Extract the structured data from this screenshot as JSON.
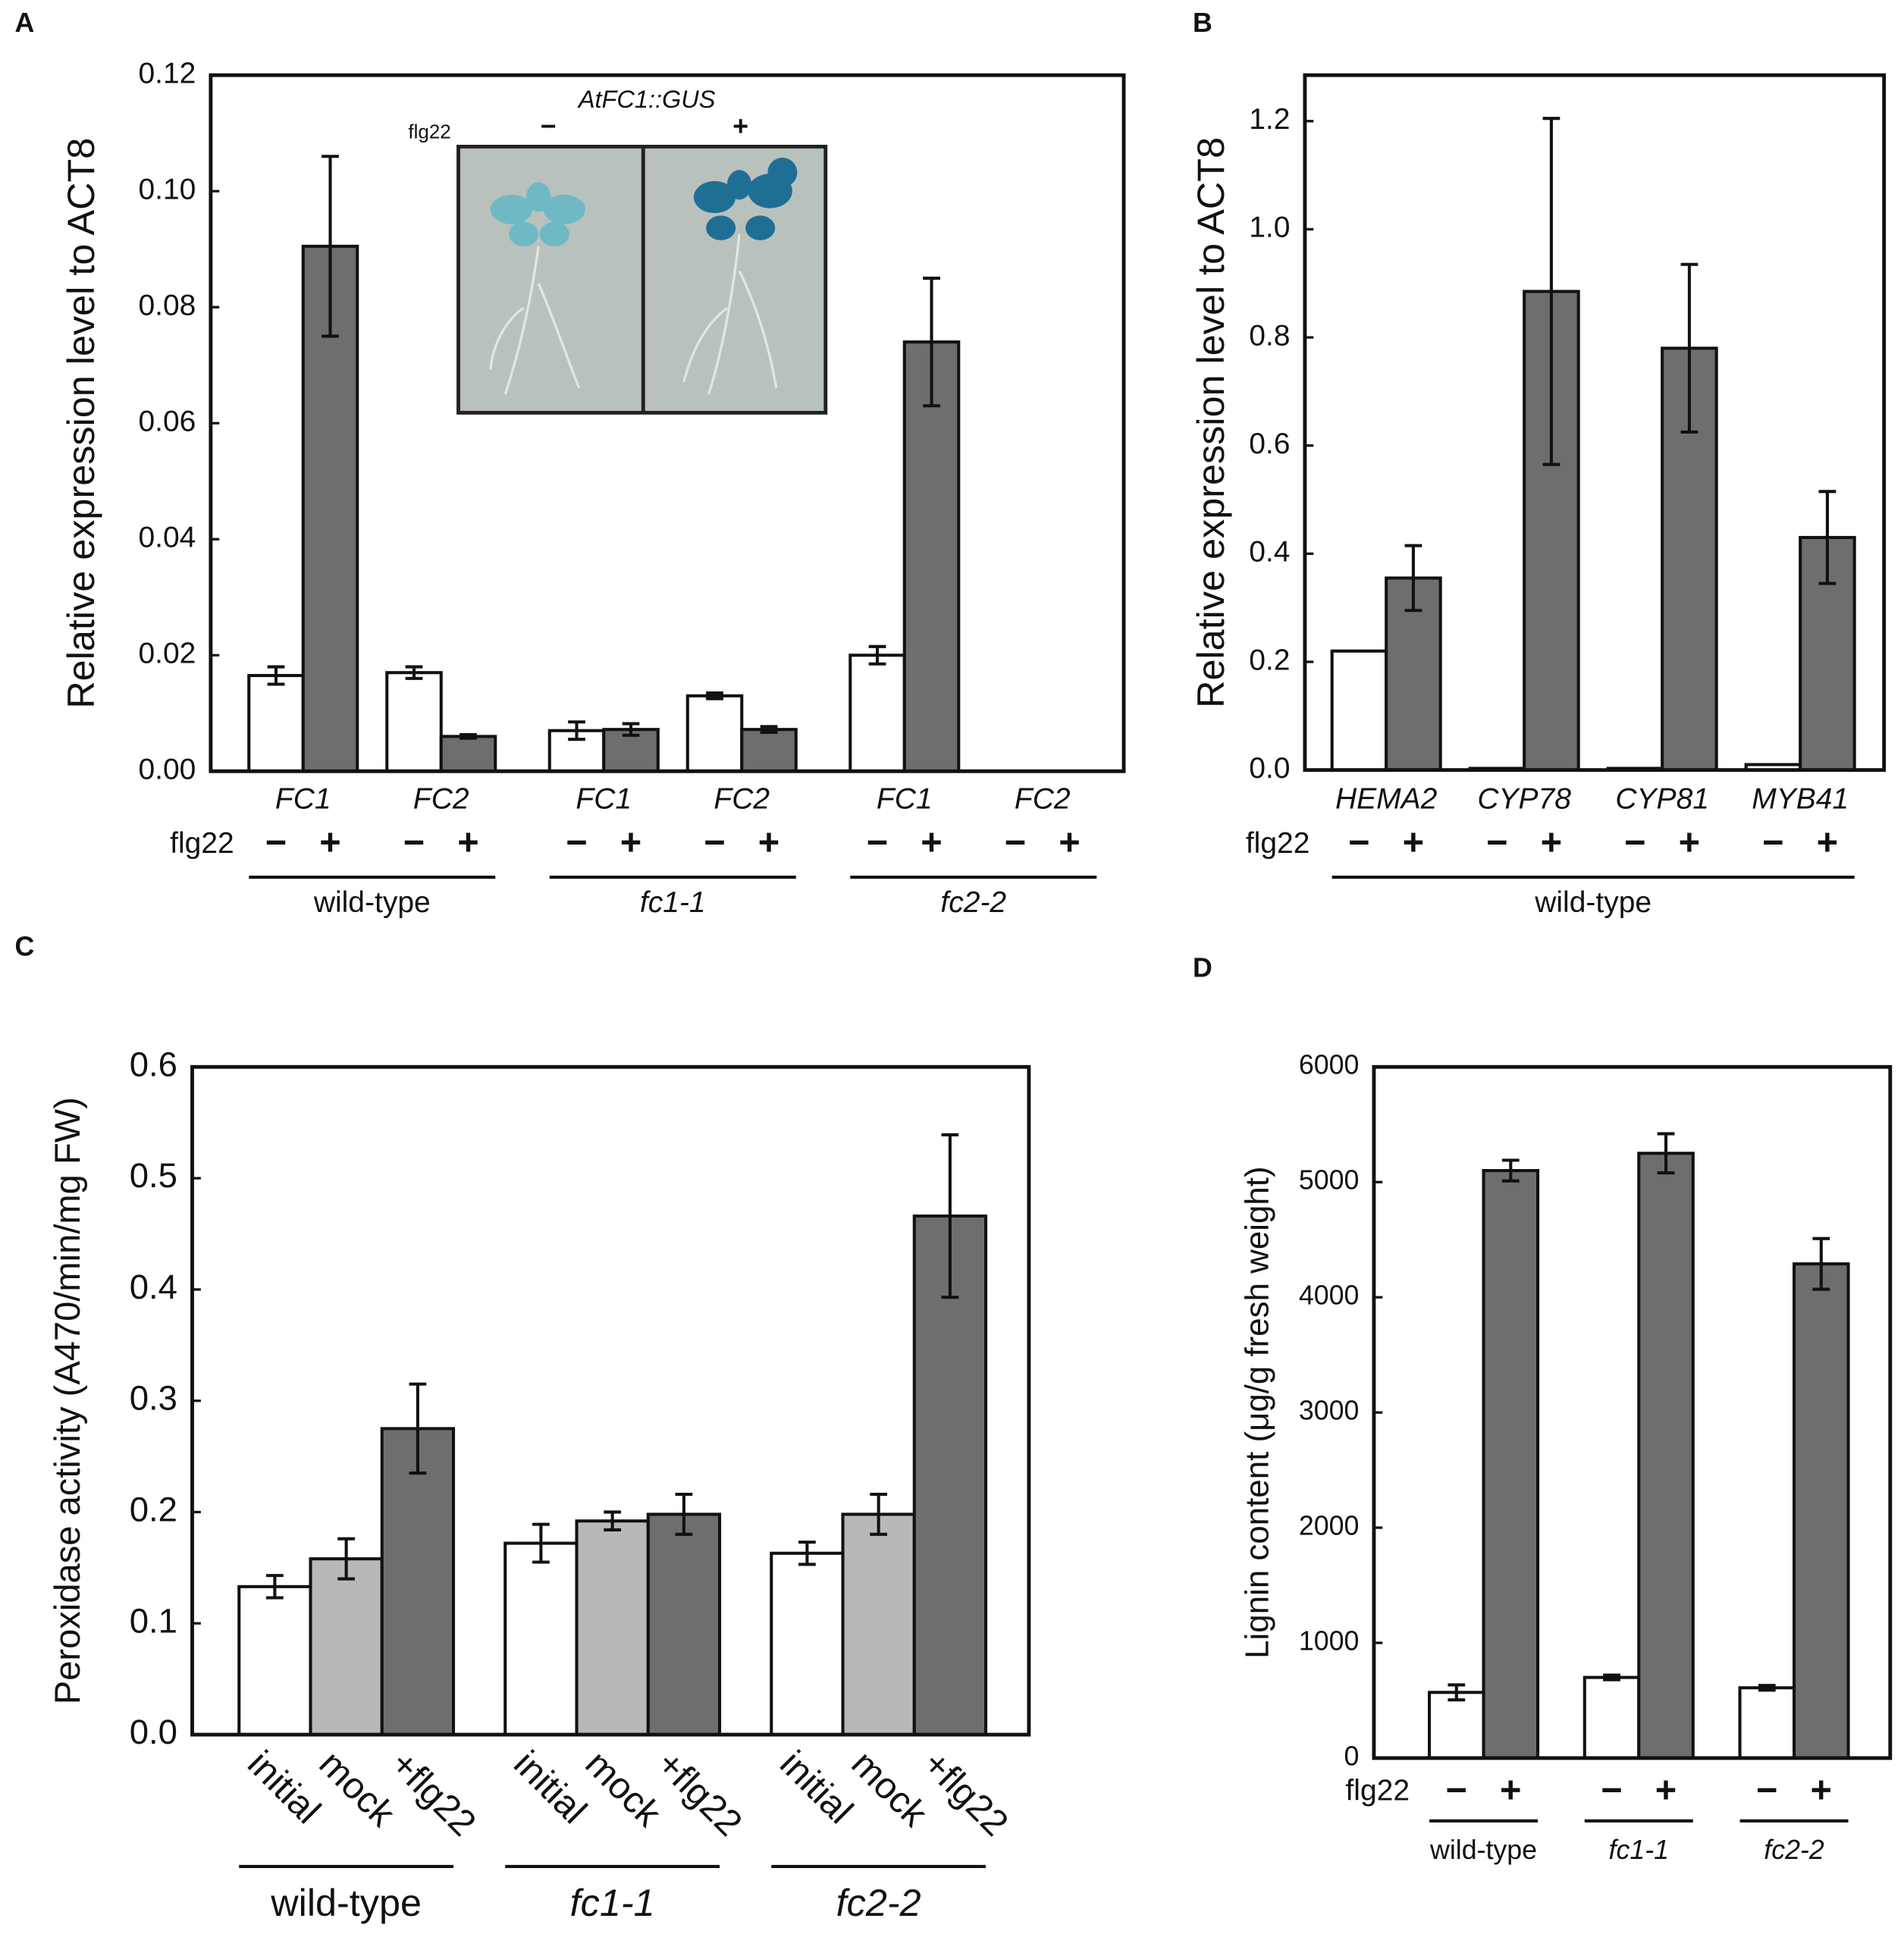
{
  "chart_data": [
    {
      "type": "bar",
      "panel": "A",
      "ylabel": "Relative expression level to ACT8",
      "ylim": [
        0,
        0.12
      ],
      "yticks": [
        {
          "value": 0,
          "label": "0.00"
        },
        0.02,
        0.04,
        0.06,
        0.08,
        {
          "value": 0.1,
          "label": "0.10"
        },
        0.12
      ],
      "series_label": "flg22",
      "groups": [
        {
          "label": "wild-type",
          "italic": false,
          "categories": [
            "FC1",
            "FC2"
          ]
        },
        {
          "label": "fc1-1",
          "italic": true,
          "categories": [
            "FC1",
            "FC2"
          ]
        },
        {
          "label": "fc2-2",
          "italic": true,
          "categories": [
            "FC1",
            "FC2"
          ]
        }
      ],
      "series": [
        {
          "name": "−",
          "color": "#ffffff",
          "values": [
            0.0165,
            0.017,
            0.007,
            0.013,
            0.02,
            0
          ],
          "errors": [
            0.0015,
            0.001,
            0.0015,
            0.0005,
            0.0015,
            null
          ]
        },
        {
          "name": "+",
          "color": "#6e6e6e",
          "values": [
            0.0905,
            0.006,
            0.0072,
            0.0072,
            0.074,
            0
          ],
          "errors": [
            0.0155,
            0.0003,
            0.001,
            0.0005,
            0.011,
            null
          ]
        }
      ],
      "inset": {
        "title": "AtFC1::GUS",
        "row_label": "flg22",
        "panels": [
          "−",
          "+"
        ]
      }
    },
    {
      "type": "bar",
      "panel": "B",
      "ylabel": "Relative expression level to ACT8",
      "ylim": [
        0,
        1.285
      ],
      "yticks": [
        {
          "value": 0,
          "label": "0.0"
        },
        0.2,
        0.4,
        0.6,
        0.8,
        {
          "value": 1,
          "label": "1.0"
        },
        1.2
      ],
      "series_label": "flg22",
      "groups": [
        {
          "label": "wild-type",
          "italic": false,
          "categories": [
            "HEMA2",
            "CYP78",
            "CYP81",
            "MYB41"
          ]
        }
      ],
      "series": [
        {
          "name": "−",
          "color": "#ffffff",
          "values": [
            0.22,
            0.003,
            0.003,
            0.01
          ],
          "errors": [
            null,
            null,
            null,
            null
          ]
        },
        {
          "name": "+",
          "color": "#6e6e6e",
          "values": [
            0.355,
            0.885,
            0.78,
            0.43
          ],
          "errors": [
            0.06,
            0.32,
            0.155,
            0.085
          ]
        }
      ]
    },
    {
      "type": "bar",
      "panel": "C",
      "ylabel": "Peroxidase activity (A470/min/mg FW)",
      "ylim": [
        0,
        0.6
      ],
      "yticks": [
        {
          "value": 0,
          "label": "0.0"
        },
        0.1,
        0.2,
        0.3,
        0.4,
        0.5,
        0.6
      ],
      "series_label_rotate": true,
      "groups": [
        {
          "label": "wild-type",
          "italic": false,
          "categories": [
            null
          ]
        },
        {
          "label": "fc1-1",
          "italic": true,
          "categories": [
            null
          ]
        },
        {
          "label": "fc2-2",
          "italic": true,
          "categories": [
            null
          ]
        }
      ],
      "series": [
        {
          "name": "initial",
          "color": "#ffffff",
          "values": [
            0.133,
            0.172,
            0.163
          ],
          "errors": [
            0.01,
            0.017,
            0.01
          ]
        },
        {
          "name": "mock",
          "color": "#b8b8b8",
          "values": [
            0.158,
            0.192,
            0.198
          ],
          "errors": [
            0.018,
            0.008,
            0.018
          ]
        },
        {
          "name": "+flg22",
          "color": "#6e6e6e",
          "values": [
            0.275,
            0.198,
            0.466
          ],
          "errors": [
            0.04,
            0.018,
            0.073
          ]
        }
      ]
    },
    {
      "type": "bar",
      "panel": "D",
      "ylabel": "Lignin content (μg/g fresh weight)",
      "ylim": [
        0,
        6000
      ],
      "yticks": [
        0,
        1000,
        2000,
        3000,
        4000,
        5000,
        6000
      ],
      "series_label": "flg22",
      "groups": [
        {
          "label": "wild-type",
          "italic": false,
          "categories": [
            null
          ]
        },
        {
          "label": "fc1-1",
          "italic": true,
          "categories": [
            null
          ]
        },
        {
          "label": "fc2-2",
          "italic": true,
          "categories": [
            null
          ]
        }
      ],
      "series": [
        {
          "name": "−",
          "color": "#ffffff",
          "values": [
            570,
            700,
            610
          ],
          "errors": [
            65,
            20,
            20
          ]
        },
        {
          "name": "+",
          "color": "#6e6e6e",
          "values": [
            5100,
            5250,
            4290
          ],
          "errors": [
            90,
            170,
            220
          ]
        }
      ]
    }
  ]
}
